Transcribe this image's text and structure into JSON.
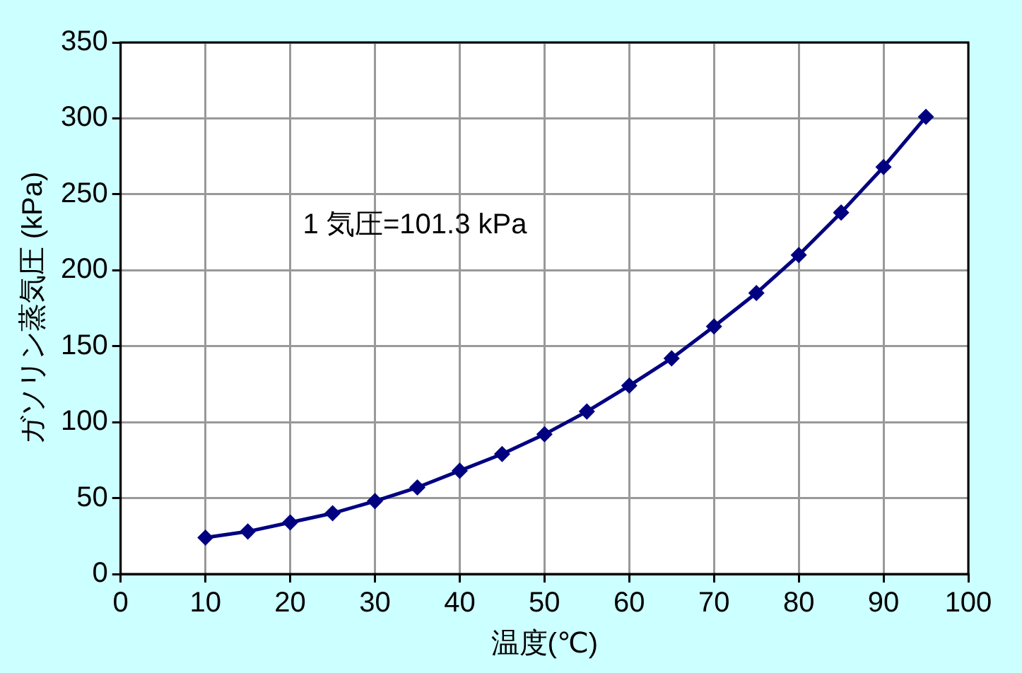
{
  "chart_data": {
    "type": "line",
    "xlabel": "温度(℃)",
    "ylabel": "ガソリン蒸気圧 (kPa)",
    "annotations": [
      "1 気圧=101.3 kPa"
    ],
    "x": [
      10,
      15,
      20,
      25,
      30,
      35,
      40,
      45,
      50,
      55,
      60,
      65,
      70,
      75,
      80,
      85,
      90,
      95
    ],
    "series": [
      {
        "color": "#000080",
        "values": [
          24,
          28,
          34,
          40,
          48,
          57,
          68,
          79,
          92,
          107,
          124,
          142,
          163,
          185,
          210,
          238,
          268,
          301
        ]
      }
    ],
    "xlim": [
      0,
      100
    ],
    "xticks": [
      0,
      10,
      20,
      30,
      40,
      50,
      60,
      70,
      80,
      90,
      100
    ],
    "ylim": [
      0,
      350
    ],
    "yticks": [
      0,
      50,
      100,
      150,
      200,
      250,
      300,
      350
    ],
    "grid": true,
    "legend": false,
    "marker": "diamond",
    "line_style": "solid"
  }
}
